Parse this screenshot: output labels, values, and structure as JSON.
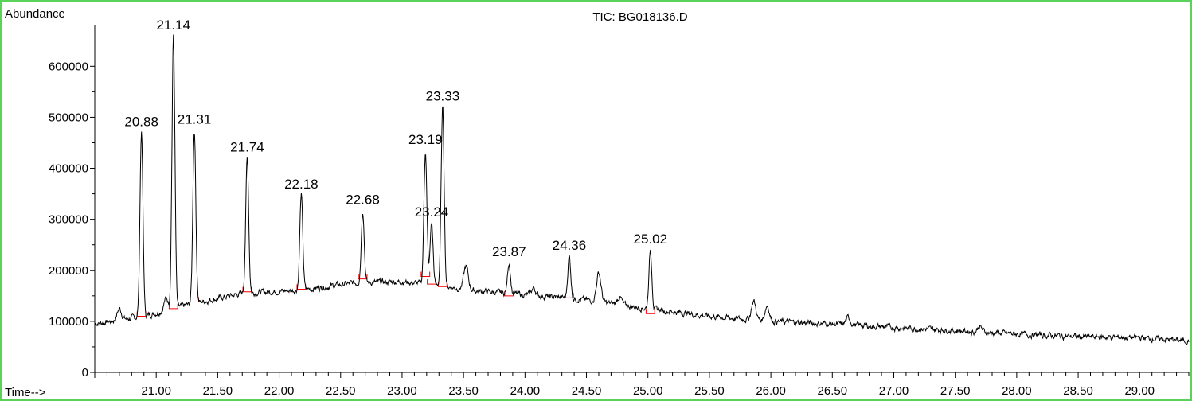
{
  "chart_data": {
    "type": "line",
    "title": "TIC: BG018136.D",
    "ylabel": "Abundance",
    "xlabel": "Time-->",
    "xlim": [
      20.5,
      29.4
    ],
    "ylim": [
      0,
      680000
    ],
    "x_ticks": [
      "21.00",
      "21.50",
      "22.00",
      "22.50",
      "23.00",
      "23.50",
      "24.00",
      "24.50",
      "25.00",
      "25.50",
      "26.00",
      "26.50",
      "27.00",
      "27.50",
      "28.00",
      "28.50",
      "29.00"
    ],
    "y_ticks": [
      "0",
      "100000",
      "200000",
      "300000",
      "400000",
      "500000",
      "600000"
    ],
    "peaks": [
      {
        "label": "20.88",
        "x": 20.88,
        "height": 470000,
        "base": 110000
      },
      {
        "label": "21.14",
        "x": 21.14,
        "height": 660000,
        "base": 125000
      },
      {
        "label": "21.31",
        "x": 21.31,
        "height": 475000,
        "base": 138000
      },
      {
        "label": "21.74",
        "x": 21.74,
        "height": 420000,
        "base": 158000
      },
      {
        "label": "22.18",
        "x": 22.18,
        "height": 348000,
        "base": 163000
      },
      {
        "label": "22.68",
        "x": 22.68,
        "height": 317000,
        "base": 183000
      },
      {
        "label": "23.19",
        "x": 23.19,
        "height": 435000,
        "base": 188000
      },
      {
        "label": "23.24",
        "x": 23.24,
        "height": 293000,
        "base": 173000
      },
      {
        "label": "23.33",
        "x": 23.33,
        "height": 520000,
        "base": 168000
      },
      {
        "label": "23.87",
        "x": 23.87,
        "height": 215000,
        "base": 150000
      },
      {
        "label": "24.36",
        "x": 24.36,
        "height": 228000,
        "base": 146000
      },
      {
        "label": "25.02",
        "x": 25.02,
        "height": 240000,
        "base": 115000
      }
    ],
    "minor_peaks": [
      {
        "x": 20.7,
        "height": 125000
      },
      {
        "x": 21.08,
        "height": 145000
      },
      {
        "x": 23.52,
        "height": 208000
      },
      {
        "x": 24.07,
        "height": 165000
      },
      {
        "x": 24.6,
        "height": 195000
      },
      {
        "x": 24.77,
        "height": 148000
      },
      {
        "x": 25.86,
        "height": 140000
      },
      {
        "x": 25.97,
        "height": 131000
      },
      {
        "x": 26.63,
        "height": 107000
      },
      {
        "x": 27.7,
        "height": 90000
      }
    ],
    "series_color": "#000000",
    "baseline_color": "#ff0000",
    "frame_color": "#5bd35b"
  }
}
